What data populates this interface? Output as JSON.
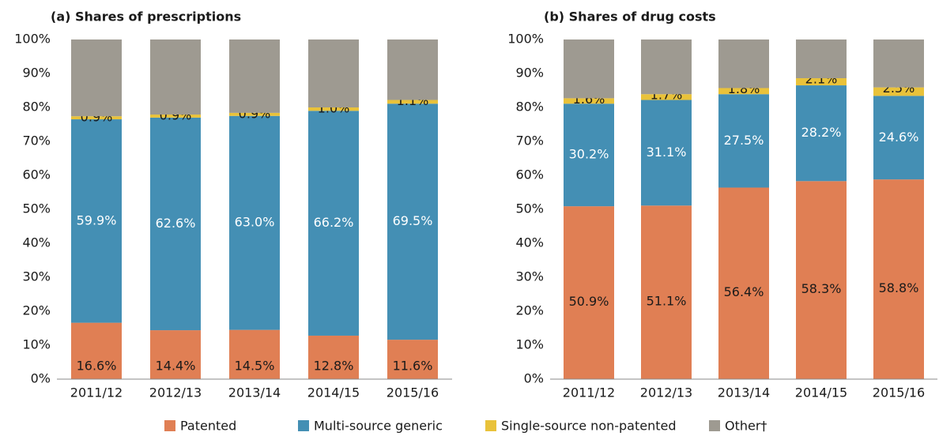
{
  "chart_data": [
    {
      "type": "stacked_bar",
      "title": "(a) Shares of prescriptions",
      "categories": [
        "2011/12",
        "2012/13",
        "2013/14",
        "2014/15",
        "2015/16"
      ],
      "series": [
        {
          "name": "Patented",
          "color": "#e07f54",
          "values": [
            16.6,
            14.4,
            14.5,
            12.8,
            11.6
          ],
          "value_labels": [
            "16.6%",
            "14.4%",
            "14.5%",
            "12.8%",
            "11.6%"
          ]
        },
        {
          "name": "Multi-source generic",
          "color": "#448fb4",
          "values": [
            59.9,
            62.6,
            63.0,
            66.2,
            69.5
          ],
          "value_labels": [
            "59.9%",
            "62.6%",
            "63.0%",
            "66.2%",
            "69.5%"
          ]
        },
        {
          "name": "Single-source non-patented",
          "color": "#e9c23a",
          "values": [
            0.9,
            0.9,
            0.9,
            1.0,
            1.1
          ],
          "value_labels": [
            "0.9%",
            "0.9%",
            "0.9%",
            "1.0%",
            "1.1%"
          ]
        },
        {
          "name": "Other†",
          "color": "#9e9a91",
          "values": [
            22.6,
            22.1,
            21.6,
            20.0,
            17.8
          ]
        }
      ],
      "ylim": [
        0,
        100
      ],
      "yticks": [
        {
          "value": 0,
          "label": "0%"
        },
        {
          "value": 10,
          "label": "10%"
        },
        {
          "value": 20,
          "label": "20%"
        },
        {
          "value": 30,
          "label": "30%"
        },
        {
          "value": 40,
          "label": "40%"
        },
        {
          "value": 50,
          "label": "50%"
        },
        {
          "value": 60,
          "label": "60%"
        },
        {
          "value": 70,
          "label": "70%"
        },
        {
          "value": 80,
          "label": "80%"
        },
        {
          "value": 90,
          "label": "90%"
        },
        {
          "value": 100,
          "label": "100%"
        }
      ]
    },
    {
      "type": "stacked_bar",
      "title": "(b) Shares of drug costs",
      "categories": [
        "2011/12",
        "2012/13",
        "2013/14",
        "2014/15",
        "2015/16"
      ],
      "series": [
        {
          "color": "#e07f54",
          "values": [
            50.9,
            51.1,
            56.4,
            58.3,
            58.8
          ],
          "value_labels": [
            "50.9%",
            "51.1%",
            "56.4%",
            "58.3%",
            "58.8%"
          ]
        },
        {
          "color": "#448fb4",
          "values": [
            30.2,
            31.1,
            27.5,
            28.2,
            24.6
          ],
          "value_labels": [
            "30.2%",
            "31.1%",
            "27.5%",
            "28.2%",
            "24.6%"
          ]
        },
        {
          "color": "#e9c23a",
          "values": [
            1.6,
            1.7,
            1.8,
            2.1,
            2.5
          ],
          "value_labels": [
            "1.6%",
            "1.7%",
            "1.8%",
            "2.1%",
            "2.5%"
          ]
        },
        {
          "color": "#9e9a91",
          "values": [
            17.3,
            16.1,
            14.3,
            11.4,
            14.1
          ]
        }
      ],
      "ylim": [
        0,
        100
      ],
      "yticks": [
        {
          "value": 0,
          "label": "0%"
        },
        {
          "value": 10,
          "label": "10%"
        },
        {
          "value": 20,
          "label": "20%"
        },
        {
          "value": 30,
          "label": "30%"
        },
        {
          "value": 40,
          "label": "40%"
        },
        {
          "value": 50,
          "label": "50%"
        },
        {
          "value": 60,
          "label": "60%"
        },
        {
          "value": 70,
          "label": "70%"
        },
        {
          "value": 80,
          "label": "80%"
        },
        {
          "value": 90,
          "label": "90%"
        },
        {
          "value": 100,
          "label": "100%"
        }
      ]
    }
  ]
}
